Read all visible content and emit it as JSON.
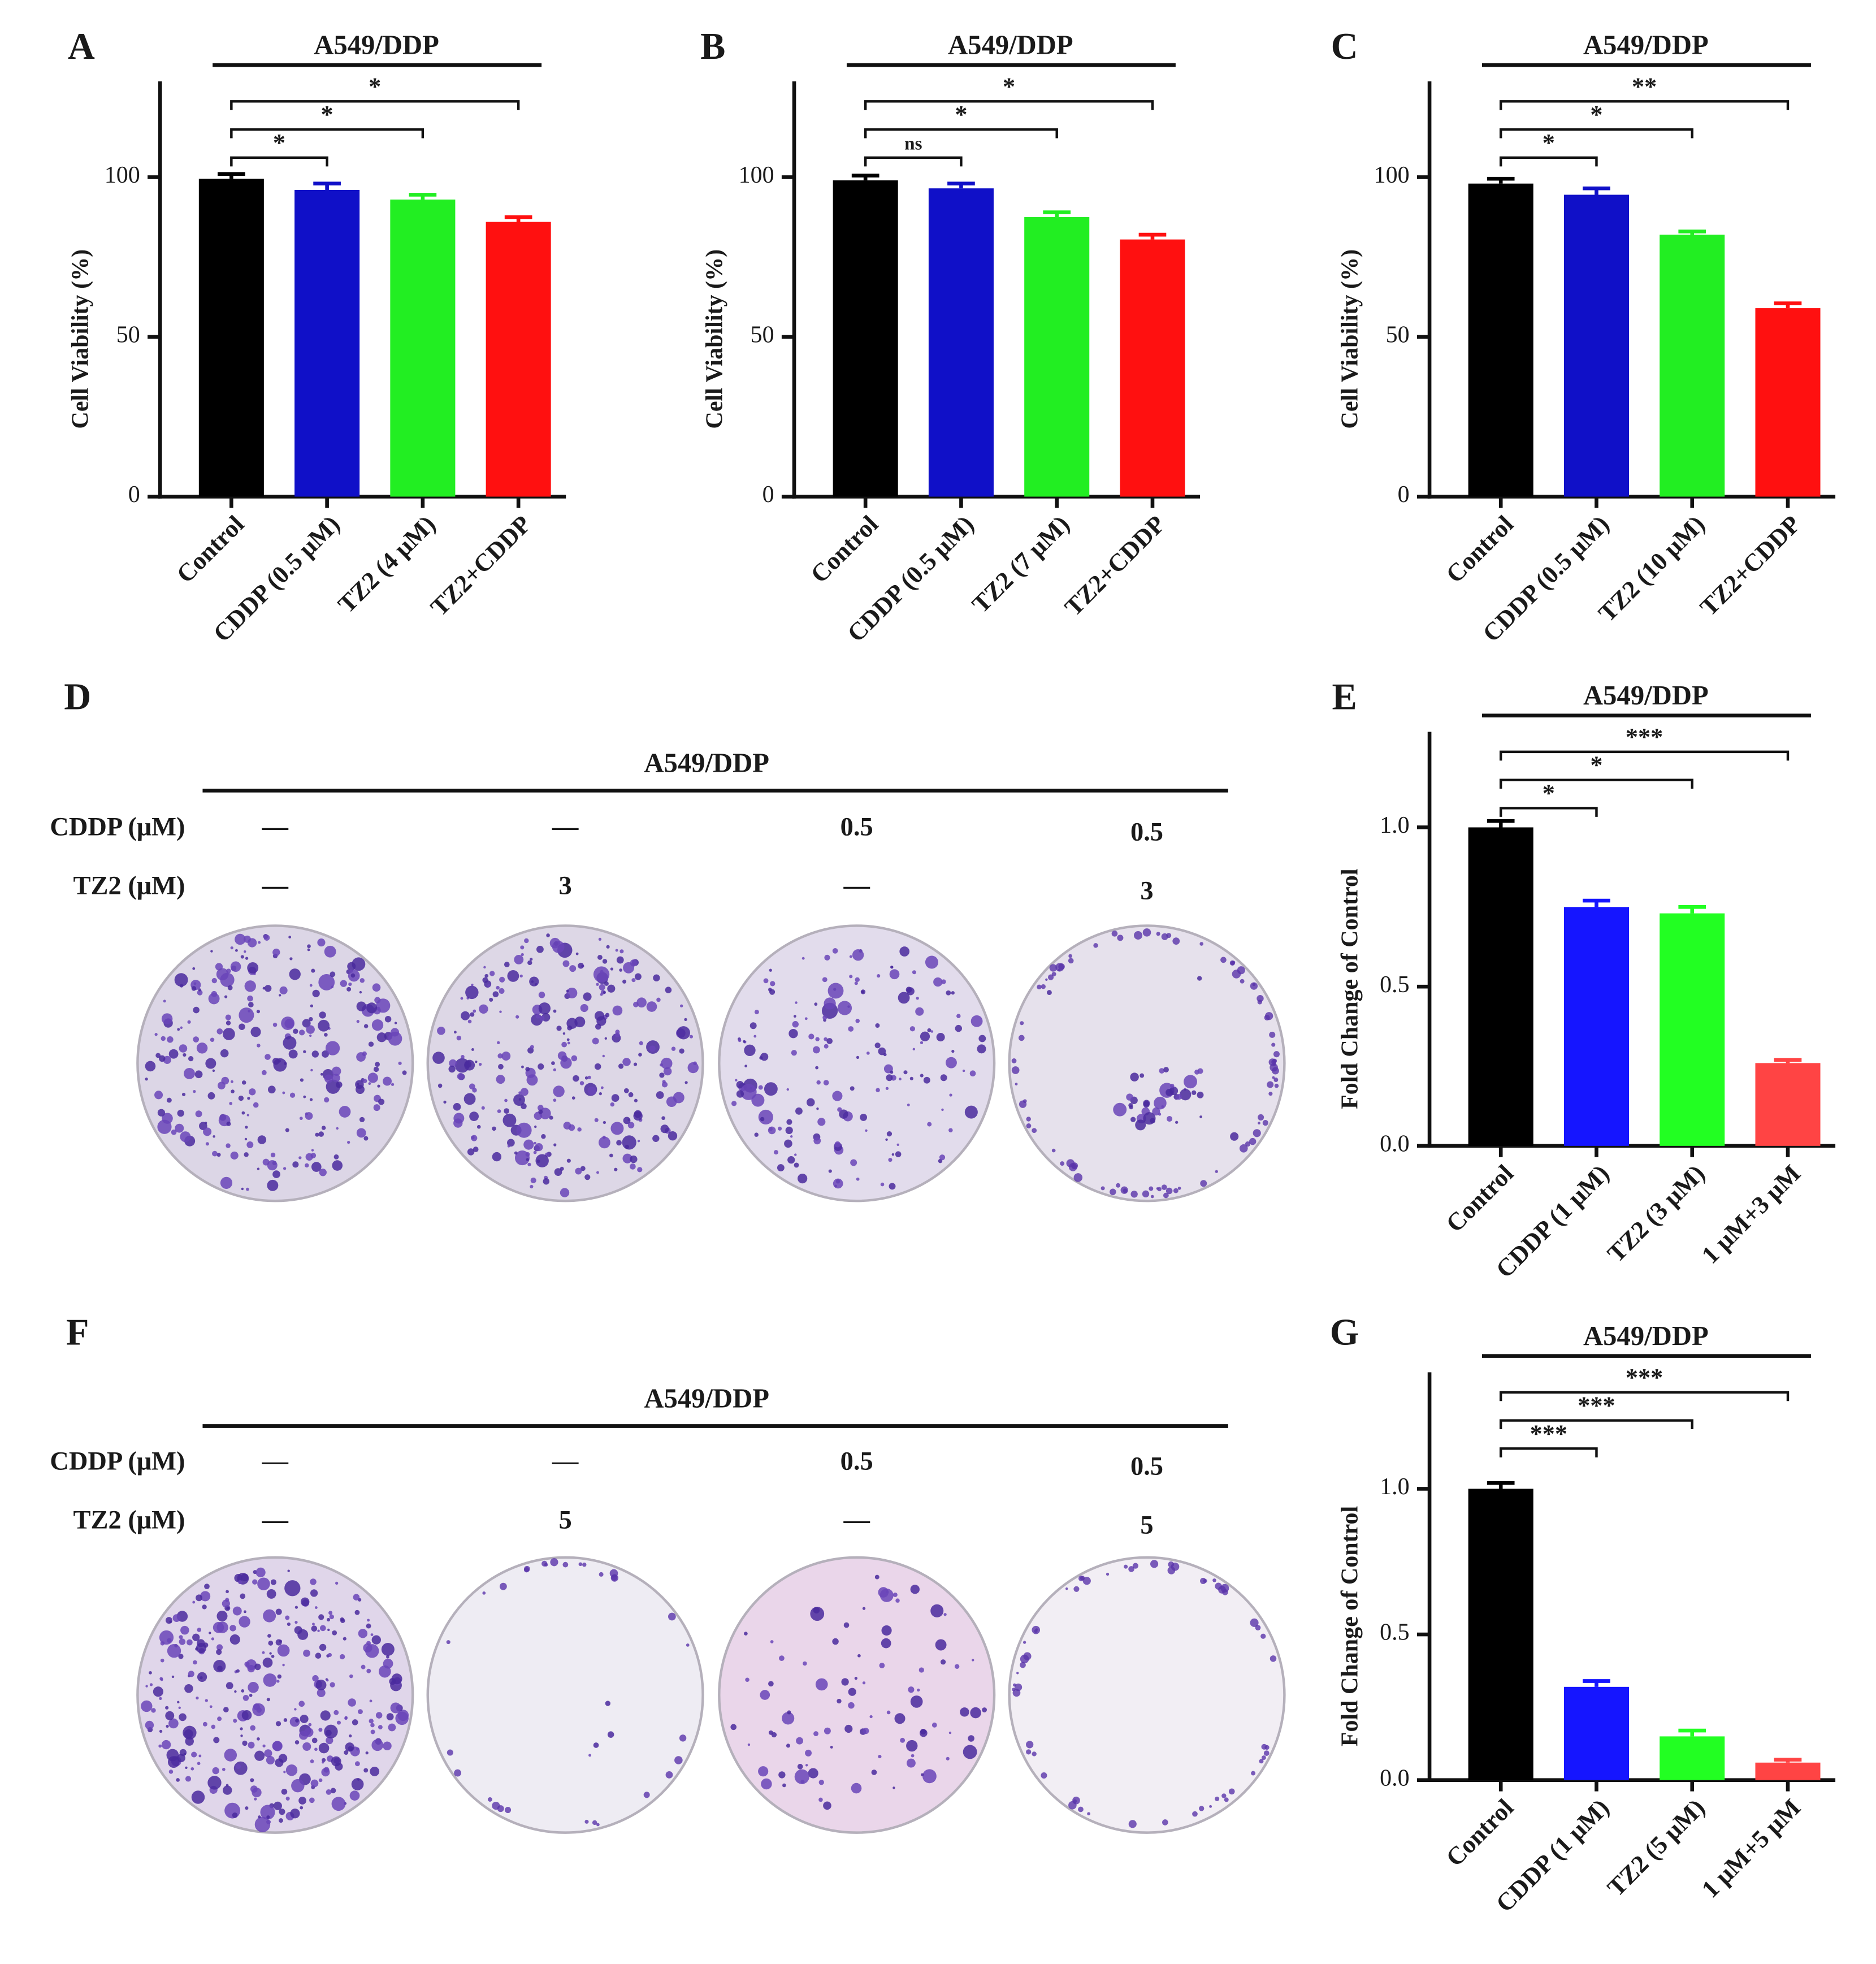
{
  "chart_data": [
    {
      "type": "bar",
      "panel_label": "A",
      "title": "A549/DDP",
      "y_label": "Cell Viability (%)",
      "categories": [
        "Control",
        "CDDP (0.5 μM)",
        "TZ2 (4 μM)",
        "TZ2+CDDP"
      ],
      "values": [
        99.5,
        96,
        93,
        86
      ],
      "errors": [
        1.5,
        2,
        1.5,
        1.5
      ],
      "colors": [
        "#000000",
        "#1010c8",
        "#22ee22",
        "#ff1010"
      ],
      "ylim": [
        0,
        130
      ],
      "yticks": [
        0,
        50,
        100
      ],
      "comparisons": [
        {
          "label": "*",
          "from": 0,
          "to": 1
        },
        {
          "label": "*",
          "from": 0,
          "to": 2
        },
        {
          "label": "*",
          "from": 0,
          "to": 3
        }
      ]
    },
    {
      "type": "bar",
      "panel_label": "B",
      "title": "A549/DDP",
      "y_label": "Cell Viability (%)",
      "categories": [
        "Control",
        "CDDP (0.5 μM)",
        "TZ2 (7 μM)",
        "TZ2+CDDP"
      ],
      "values": [
        99,
        96.5,
        87.5,
        80.5
      ],
      "errors": [
        1.5,
        1.5,
        1.5,
        1.5
      ],
      "colors": [
        "#000000",
        "#1010c8",
        "#22ee22",
        "#ff1010"
      ],
      "ylim": [
        0,
        130
      ],
      "yticks": [
        0,
        50,
        100
      ],
      "comparisons": [
        {
          "label": "ns",
          "from": 0,
          "to": 1
        },
        {
          "label": "*",
          "from": 0,
          "to": 2
        },
        {
          "label": "*",
          "from": 0,
          "to": 3
        }
      ]
    },
    {
      "type": "bar",
      "panel_label": "C",
      "title": "A549/DDP",
      "y_label": "Cell Viability (%)",
      "categories": [
        "Control",
        "CDDP (0.5 μM)",
        "TZ2 (10 μM)",
        "TZ2+CDDP"
      ],
      "values": [
        98,
        94.5,
        82,
        59
      ],
      "errors": [
        1.5,
        2,
        1,
        1.5
      ],
      "colors": [
        "#000000",
        "#1010c8",
        "#22ee22",
        "#ff1010"
      ],
      "ylim": [
        0,
        130
      ],
      "yticks": [
        0,
        50,
        100
      ],
      "comparisons": [
        {
          "label": "*",
          "from": 0,
          "to": 1
        },
        {
          "label": "*",
          "from": 0,
          "to": 2
        },
        {
          "label": "**",
          "from": 0,
          "to": 3
        }
      ]
    },
    {
      "type": "bar",
      "panel_label": "E",
      "title": "A549/DDP",
      "y_label": "Fold Change of Control",
      "categories": [
        "Control",
        "CDDP (1 μM)",
        "TZ2 (3 μM)",
        "1 μM+3 μM"
      ],
      "values": [
        1.0,
        0.75,
        0.73,
        0.26
      ],
      "errors": [
        0.02,
        0.02,
        0.02,
        0.01
      ],
      "colors": [
        "#000000",
        "#1515ff",
        "#22ff22",
        "#ff4444"
      ],
      "ylim": [
        0,
        1.3
      ],
      "yticks": [
        {
          "value": 0,
          "label": "0.0"
        },
        0.5,
        {
          "value": 1,
          "label": "1.0"
        }
      ],
      "comparisons": [
        {
          "label": "*",
          "from": 0,
          "to": 1
        },
        {
          "label": "*",
          "from": 0,
          "to": 2
        },
        {
          "label": "***",
          "from": 0,
          "to": 3
        }
      ]
    },
    {
      "type": "bar",
      "panel_label": "G",
      "title": "A549/DDP",
      "y_label": "Fold Change of Control",
      "categories": [
        "Control",
        "CDDP (1 μM)",
        "TZ2 (5 μM)",
        "1 μM+5 μM"
      ],
      "values": [
        1.0,
        0.32,
        0.15,
        0.06
      ],
      "errors": [
        0.02,
        0.02,
        0.02,
        0.01
      ],
      "colors": [
        "#000000",
        "#1515ff",
        "#22ff22",
        "#ff4444"
      ],
      "ylim": [
        0,
        1.4
      ],
      "yticks": [
        {
          "value": 0,
          "label": "0.0"
        },
        0.5,
        {
          "value": 1,
          "label": "1.0"
        }
      ],
      "comparisons": [
        {
          "label": "***",
          "from": 0,
          "to": 1
        },
        {
          "label": "***",
          "from": 0,
          "to": 2
        },
        {
          "label": "***",
          "from": 0,
          "to": 3
        }
      ]
    }
  ],
  "colony_panels": [
    {
      "panel_label": "D",
      "title": "A549/DDP",
      "rows": [
        {
          "label": "CDDP (μM)",
          "cells": [
            "—",
            "—",
            "0.5",
            "0.5"
          ]
        },
        {
          "label": "TZ2 (μM)",
          "cells": [
            "—",
            "3",
            "—",
            "3"
          ]
        }
      ]
    },
    {
      "panel_label": "F",
      "title": "A549/DDP",
      "rows": [
        {
          "label": "CDDP (μM)",
          "cells": [
            "—",
            "—",
            "0.5",
            "0.5"
          ]
        },
        {
          "label": "TZ2 (μM)",
          "cells": [
            "—",
            "5",
            "—",
            "5"
          ]
        }
      ]
    }
  ]
}
